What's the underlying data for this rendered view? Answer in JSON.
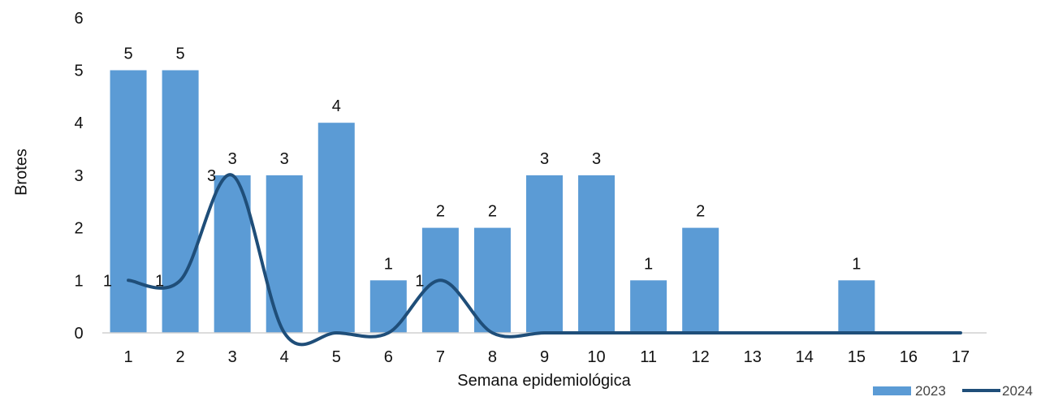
{
  "chart_data": {
    "type": "bar",
    "categories": [
      "1",
      "2",
      "3",
      "4",
      "5",
      "6",
      "7",
      "8",
      "9",
      "10",
      "11",
      "12",
      "13",
      "14",
      "15",
      "16",
      "17"
    ],
    "series": [
      {
        "name": "2023",
        "kind": "bar",
        "color": "#5B9BD5",
        "values": [
          5,
          5,
          3,
          3,
          4,
          1,
          2,
          2,
          3,
          3,
          1,
          2,
          0,
          0,
          1,
          0,
          0
        ]
      },
      {
        "name": "2024",
        "kind": "line",
        "smooth": true,
        "color": "#1F4E79",
        "values": [
          1,
          1,
          3,
          0,
          0,
          0,
          1,
          0,
          0,
          0,
          0,
          0,
          0,
          0,
          0,
          0,
          0
        ],
        "labeled_points": [
          0,
          1,
          2,
          6
        ]
      }
    ],
    "bar_labels_shown_for": [
      0,
      1,
      2,
      3,
      4,
      5,
      6,
      7,
      8,
      9,
      10,
      11,
      14
    ],
    "ylim": [
      0,
      6
    ],
    "yticks": [
      "0",
      "1",
      "2",
      "3",
      "4",
      "5",
      "6"
    ],
    "xlabel": "Semana epidemiológica",
    "ylabel": "Brotes",
    "legend_position": "bottom-right",
    "grid": false
  }
}
